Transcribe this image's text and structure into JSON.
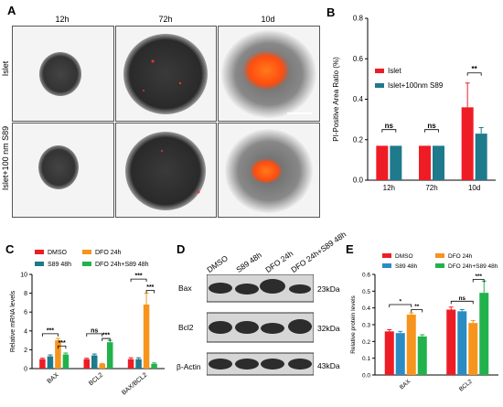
{
  "panelA": {
    "letter": "A",
    "time_labels": [
      "12h",
      "72h",
      "10d"
    ],
    "row_labels": [
      "Islet",
      "Islet+100 nm S89"
    ]
  },
  "panelB": {
    "letter": "B",
    "legend": [
      "Islet",
      "Islet+100nm S89"
    ],
    "ylabel": "PI-Positive Area Ratio (%)",
    "categories": [
      "12h",
      "72h",
      "10d"
    ],
    "sig": [
      "ns",
      "ns",
      "**"
    ]
  },
  "panelC": {
    "letter": "C",
    "legend": [
      "DMSO",
      "DFO 24h",
      "S89 48h",
      "DFO 24h+S89 48h"
    ],
    "ylabel": "Relative mRNA levels",
    "categories": [
      "BAX",
      "BCL2",
      "BAX/BCL2"
    ],
    "sig": [
      "***",
      "***",
      "ns",
      "***",
      "***",
      "***"
    ]
  },
  "panelD": {
    "letter": "D",
    "lanes": [
      "DMSO",
      "S89 48h",
      "DFO 24h",
      "DFO 24h+S89 48h"
    ],
    "proteins": [
      "Bax",
      "Bcl2",
      "β-Actin"
    ],
    "sizes": [
      "23kDa",
      "32kDa",
      "43kDa"
    ]
  },
  "panelE": {
    "letter": "E",
    "legend": [
      "DMSO",
      "DFO 24h",
      "S89 48h",
      "DFO 24h+S89 48h"
    ],
    "ylabel": "Relative protein levels",
    "categories": [
      "BAX",
      "BCL2"
    ],
    "sig": [
      "*",
      "**",
      "ns",
      "***"
    ]
  },
  "colors": {
    "red": "#ee1c25",
    "teal": "#1f7a8c",
    "orange": "#f7941d",
    "blue": "#2b8cc4",
    "green": "#22b24c"
  },
  "chart_data": [
    {
      "id": "B",
      "type": "bar",
      "categories": [
        "12h",
        "72h",
        "10d"
      ],
      "series": [
        {
          "name": "Islet",
          "values": [
            0.17,
            0.17,
            0.36
          ],
          "errors": [
            0,
            0,
            0.12
          ]
        },
        {
          "name": "Islet+100nm S89",
          "values": [
            0.17,
            0.17,
            0.23
          ],
          "errors": [
            0,
            0,
            0.03
          ]
        }
      ],
      "ylim": [
        0,
        0.8
      ],
      "yticks": [
        0.0,
        0.2,
        0.4,
        0.6,
        0.8
      ],
      "ylabel": "PI-Positive Area Ratio (%)"
    },
    {
      "id": "C",
      "type": "bar",
      "categories": [
        "BAX",
        "BCL2",
        "BAX/BCL2"
      ],
      "series": [
        {
          "name": "DMSO",
          "values": [
            1.0,
            1.0,
            1.0
          ],
          "errors": [
            0.1,
            0.1,
            0.15
          ]
        },
        {
          "name": "S89 48h",
          "values": [
            1.3,
            1.4,
            1.0
          ],
          "errors": [
            0.15,
            0.15,
            0.15
          ]
        },
        {
          "name": "DFO 24h",
          "values": [
            3.0,
            0.5,
            6.8
          ],
          "errors": [
            0.2,
            0.05,
            1.2
          ]
        },
        {
          "name": "DFO 24h+S89 48h",
          "values": [
            1.5,
            2.8,
            0.5
          ],
          "errors": [
            0.15,
            0.2,
            0.1
          ]
        }
      ],
      "ylim": [
        0,
        10
      ],
      "yticks": [
        0,
        2,
        4,
        6,
        8,
        10
      ],
      "ylabel": "Relative mRNA levels"
    },
    {
      "id": "E",
      "type": "bar",
      "categories": [
        "BAX",
        "BCL2"
      ],
      "series": [
        {
          "name": "DMSO",
          "values": [
            0.26,
            0.39
          ],
          "errors": [
            0.01,
            0.015
          ]
        },
        {
          "name": "S89 48h",
          "values": [
            0.25,
            0.38
          ],
          "errors": [
            0.01,
            0.01
          ]
        },
        {
          "name": "DFO 24h",
          "values": [
            0.36,
            0.31
          ],
          "errors": [
            0.01,
            0.015
          ]
        },
        {
          "name": "DFO 24h+S89 48h",
          "values": [
            0.23,
            0.49
          ],
          "errors": [
            0.01,
            0.07
          ]
        }
      ],
      "ylim": [
        0,
        0.6
      ],
      "yticks": [
        0.0,
        0.1,
        0.2,
        0.3,
        0.4,
        0.5,
        0.6
      ],
      "ylabel": "Relative protein levels"
    }
  ]
}
